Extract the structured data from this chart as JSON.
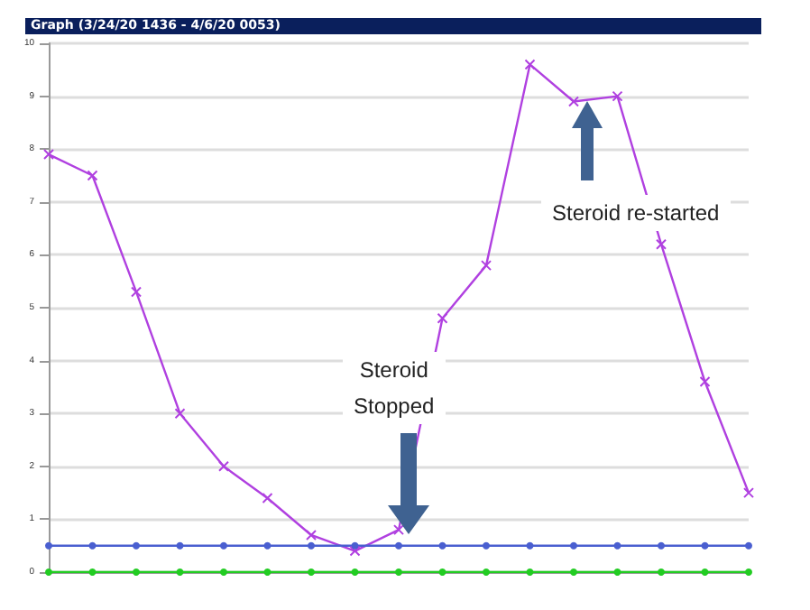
{
  "chart_data": {
    "type": "line",
    "title": "Graph  (3/24/20 1436  -  4/6/20 0053)",
    "categories": [
      null,
      null,
      null,
      null,
      null,
      null,
      null,
      null,
      null,
      null,
      null,
      null,
      null,
      null,
      null,
      null,
      null
    ],
    "series": [
      {
        "color": "#b040e0",
        "values": [
          7.9,
          7.5,
          5.3,
          3.0,
          2.0,
          1.4,
          0.7,
          0.4,
          0.8,
          4.8,
          5.8,
          9.6,
          8.9,
          9.0,
          6.2,
          3.6,
          1.5
        ]
      },
      {
        "color": "#4a5fd0",
        "values": [
          0.5,
          0.5,
          0.5,
          0.5,
          0.5,
          0.5,
          0.5,
          0.5,
          0.5,
          0.5,
          0.5,
          0.5,
          0.5,
          0.5,
          0.5,
          0.5,
          0.5
        ]
      },
      {
        "color": "#22cc22",
        "values": [
          0,
          0,
          0,
          0,
          0,
          0,
          0,
          0,
          0,
          0,
          0,
          0,
          0,
          0,
          0,
          0,
          0
        ]
      }
    ],
    "ylim": [
      0,
      10
    ],
    "yticks": [
      0,
      1,
      2,
      3,
      4,
      5,
      6,
      7,
      8,
      9,
      10
    ],
    "grid": "y",
    "marker": "cross",
    "line_style": "solid",
    "tick_labels": "y",
    "annotations": [
      "Steroid\nStopped",
      "Steroid re-started"
    ]
  }
}
